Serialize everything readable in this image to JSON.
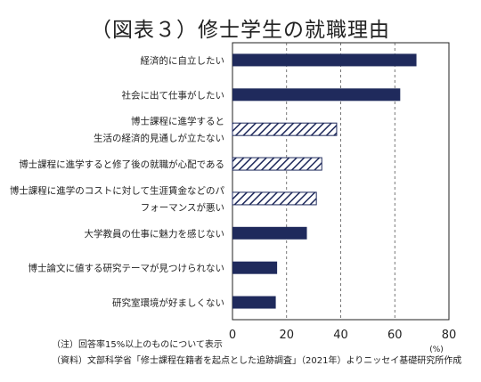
{
  "chart_data": {
    "type": "bar",
    "orientation": "horizontal",
    "title": "（図表３）修士学生の就職理由",
    "categories": [
      [
        "経済的に自立したい"
      ],
      [
        "社会に出て仕事がしたい"
      ],
      [
        "博士課程に進学すると",
        "生活の経済的見通しが立たない"
      ],
      [
        "博士課程に進学すると修了後の就職が心配である"
      ],
      [
        "博士課程に進学のコストに対して生涯賃金などのパ",
        "フォーマンスが悪い"
      ],
      [
        "大学教員の仕事に魅力を感じない"
      ],
      [
        "博士論文に値する研究テーマが見つけられない"
      ],
      [
        "研究室環境が好ましくない"
      ]
    ],
    "values": [
      68,
      62,
      38.5,
      33,
      31,
      27.5,
      16.5,
      16
    ],
    "hatched": [
      false,
      false,
      true,
      true,
      true,
      false,
      false,
      false
    ],
    "xlim": [
      0,
      80
    ],
    "xticks": [
      0,
      20,
      40,
      60,
      80
    ],
    "x_unit": "(%)",
    "grid": "dashed vertical",
    "bar_color": "#1f2a5c",
    "hatch_color": "#1f2a5c"
  },
  "notes": [
    "（注）回答率15%以上のものについて表示",
    "（資料）文部科学省「修士課程在籍者を起点とした追跡調査」（2021年）よりニッセイ基礎研究所作成"
  ]
}
